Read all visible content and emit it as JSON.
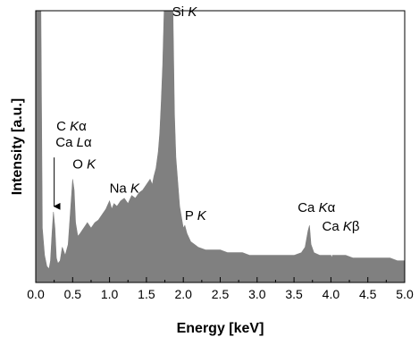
{
  "chart_data": {
    "type": "area",
    "title": "",
    "xlabel": "Energy [keV]",
    "ylabel": "Intensity [a.u.]",
    "xlim": [
      0.0,
      5.0
    ],
    "ylim": [
      0,
      100
    ],
    "xticks": [
      "0.0",
      "0.5",
      "1.0",
      "1.5",
      "2.0",
      "2.5",
      "3.0",
      "3.5",
      "4.0",
      "4.5",
      "5.0"
    ],
    "grid": false,
    "legend": "none",
    "fill_color": "#808080",
    "series": [
      {
        "x": [
          0.0,
          0.02,
          0.05,
          0.07,
          0.09,
          0.12,
          0.15,
          0.18,
          0.2,
          0.22,
          0.24,
          0.26,
          0.28,
          0.3,
          0.33,
          0.36,
          0.4,
          0.44,
          0.47,
          0.5,
          0.52,
          0.54,
          0.57,
          0.6,
          0.65,
          0.7,
          0.75,
          0.8,
          0.85,
          0.9,
          0.95,
          1.0,
          1.03,
          1.06,
          1.1,
          1.15,
          1.2,
          1.25,
          1.3,
          1.35,
          1.4,
          1.45,
          1.5,
          1.55,
          1.58,
          1.6,
          1.63,
          1.66,
          1.68,
          1.7,
          1.72,
          1.74,
          1.76,
          1.78,
          1.8,
          1.82,
          1.84,
          1.86,
          1.88,
          1.9,
          1.95,
          2.0,
          2.02,
          2.05,
          2.1,
          2.15,
          2.2,
          2.3,
          2.4,
          2.5,
          2.6,
          2.7,
          2.8,
          2.9,
          3.0,
          3.1,
          3.2,
          3.3,
          3.4,
          3.5,
          3.6,
          3.65,
          3.69,
          3.71,
          3.73,
          3.77,
          3.85,
          3.95,
          4.0,
          4.01,
          4.02,
          4.1,
          4.2,
          4.3,
          4.4,
          4.5,
          4.6,
          4.7,
          4.8,
          4.9,
          5.0
        ],
        "y": [
          100,
          100,
          100,
          100,
          20,
          10,
          6,
          5,
          8,
          18,
          26,
          20,
          9,
          7,
          8,
          13,
          10,
          14,
          26,
          38,
          34,
          22,
          17,
          18,
          20,
          22,
          20,
          22,
          23,
          25,
          27,
          30,
          27,
          29,
          28,
          30,
          31,
          29,
          32,
          31,
          33,
          34,
          36,
          38,
          36,
          39,
          42,
          48,
          55,
          66,
          80,
          100,
          100,
          100,
          100,
          100,
          100,
          100,
          62,
          46,
          28,
          20,
          21,
          18,
          15,
          14,
          13,
          12,
          12,
          12,
          11,
          11,
          11,
          10,
          10,
          10,
          10,
          10,
          10,
          10,
          11,
          13,
          19,
          21,
          14,
          11,
          10,
          10,
          10,
          9,
          10,
          10,
          10,
          9,
          9,
          9,
          9,
          9,
          9,
          8,
          8
        ]
      }
    ],
    "annotations": [
      {
        "id": "c-ka",
        "text": "C Kα",
        "x": 0.28,
        "y": 56
      },
      {
        "id": "ca-la",
        "text": "Ca Lα",
        "x": 0.27,
        "y": 50
      },
      {
        "id": "o-k",
        "text": "O K",
        "x": 0.5,
        "y": 42
      },
      {
        "id": "na-k",
        "text": "Na K",
        "x": 1.0,
        "y": 33
      },
      {
        "id": "si-k",
        "text": "Si K",
        "x": 1.85,
        "y": 98
      },
      {
        "id": "p-k",
        "text": "P K",
        "x": 2.02,
        "y": 23
      },
      {
        "id": "ca-ka",
        "text": "Ca Kα",
        "x": 3.55,
        "y": 26
      },
      {
        "id": "ca-kb",
        "text": "Ca Kβ",
        "x": 3.88,
        "y": 19
      }
    ]
  }
}
